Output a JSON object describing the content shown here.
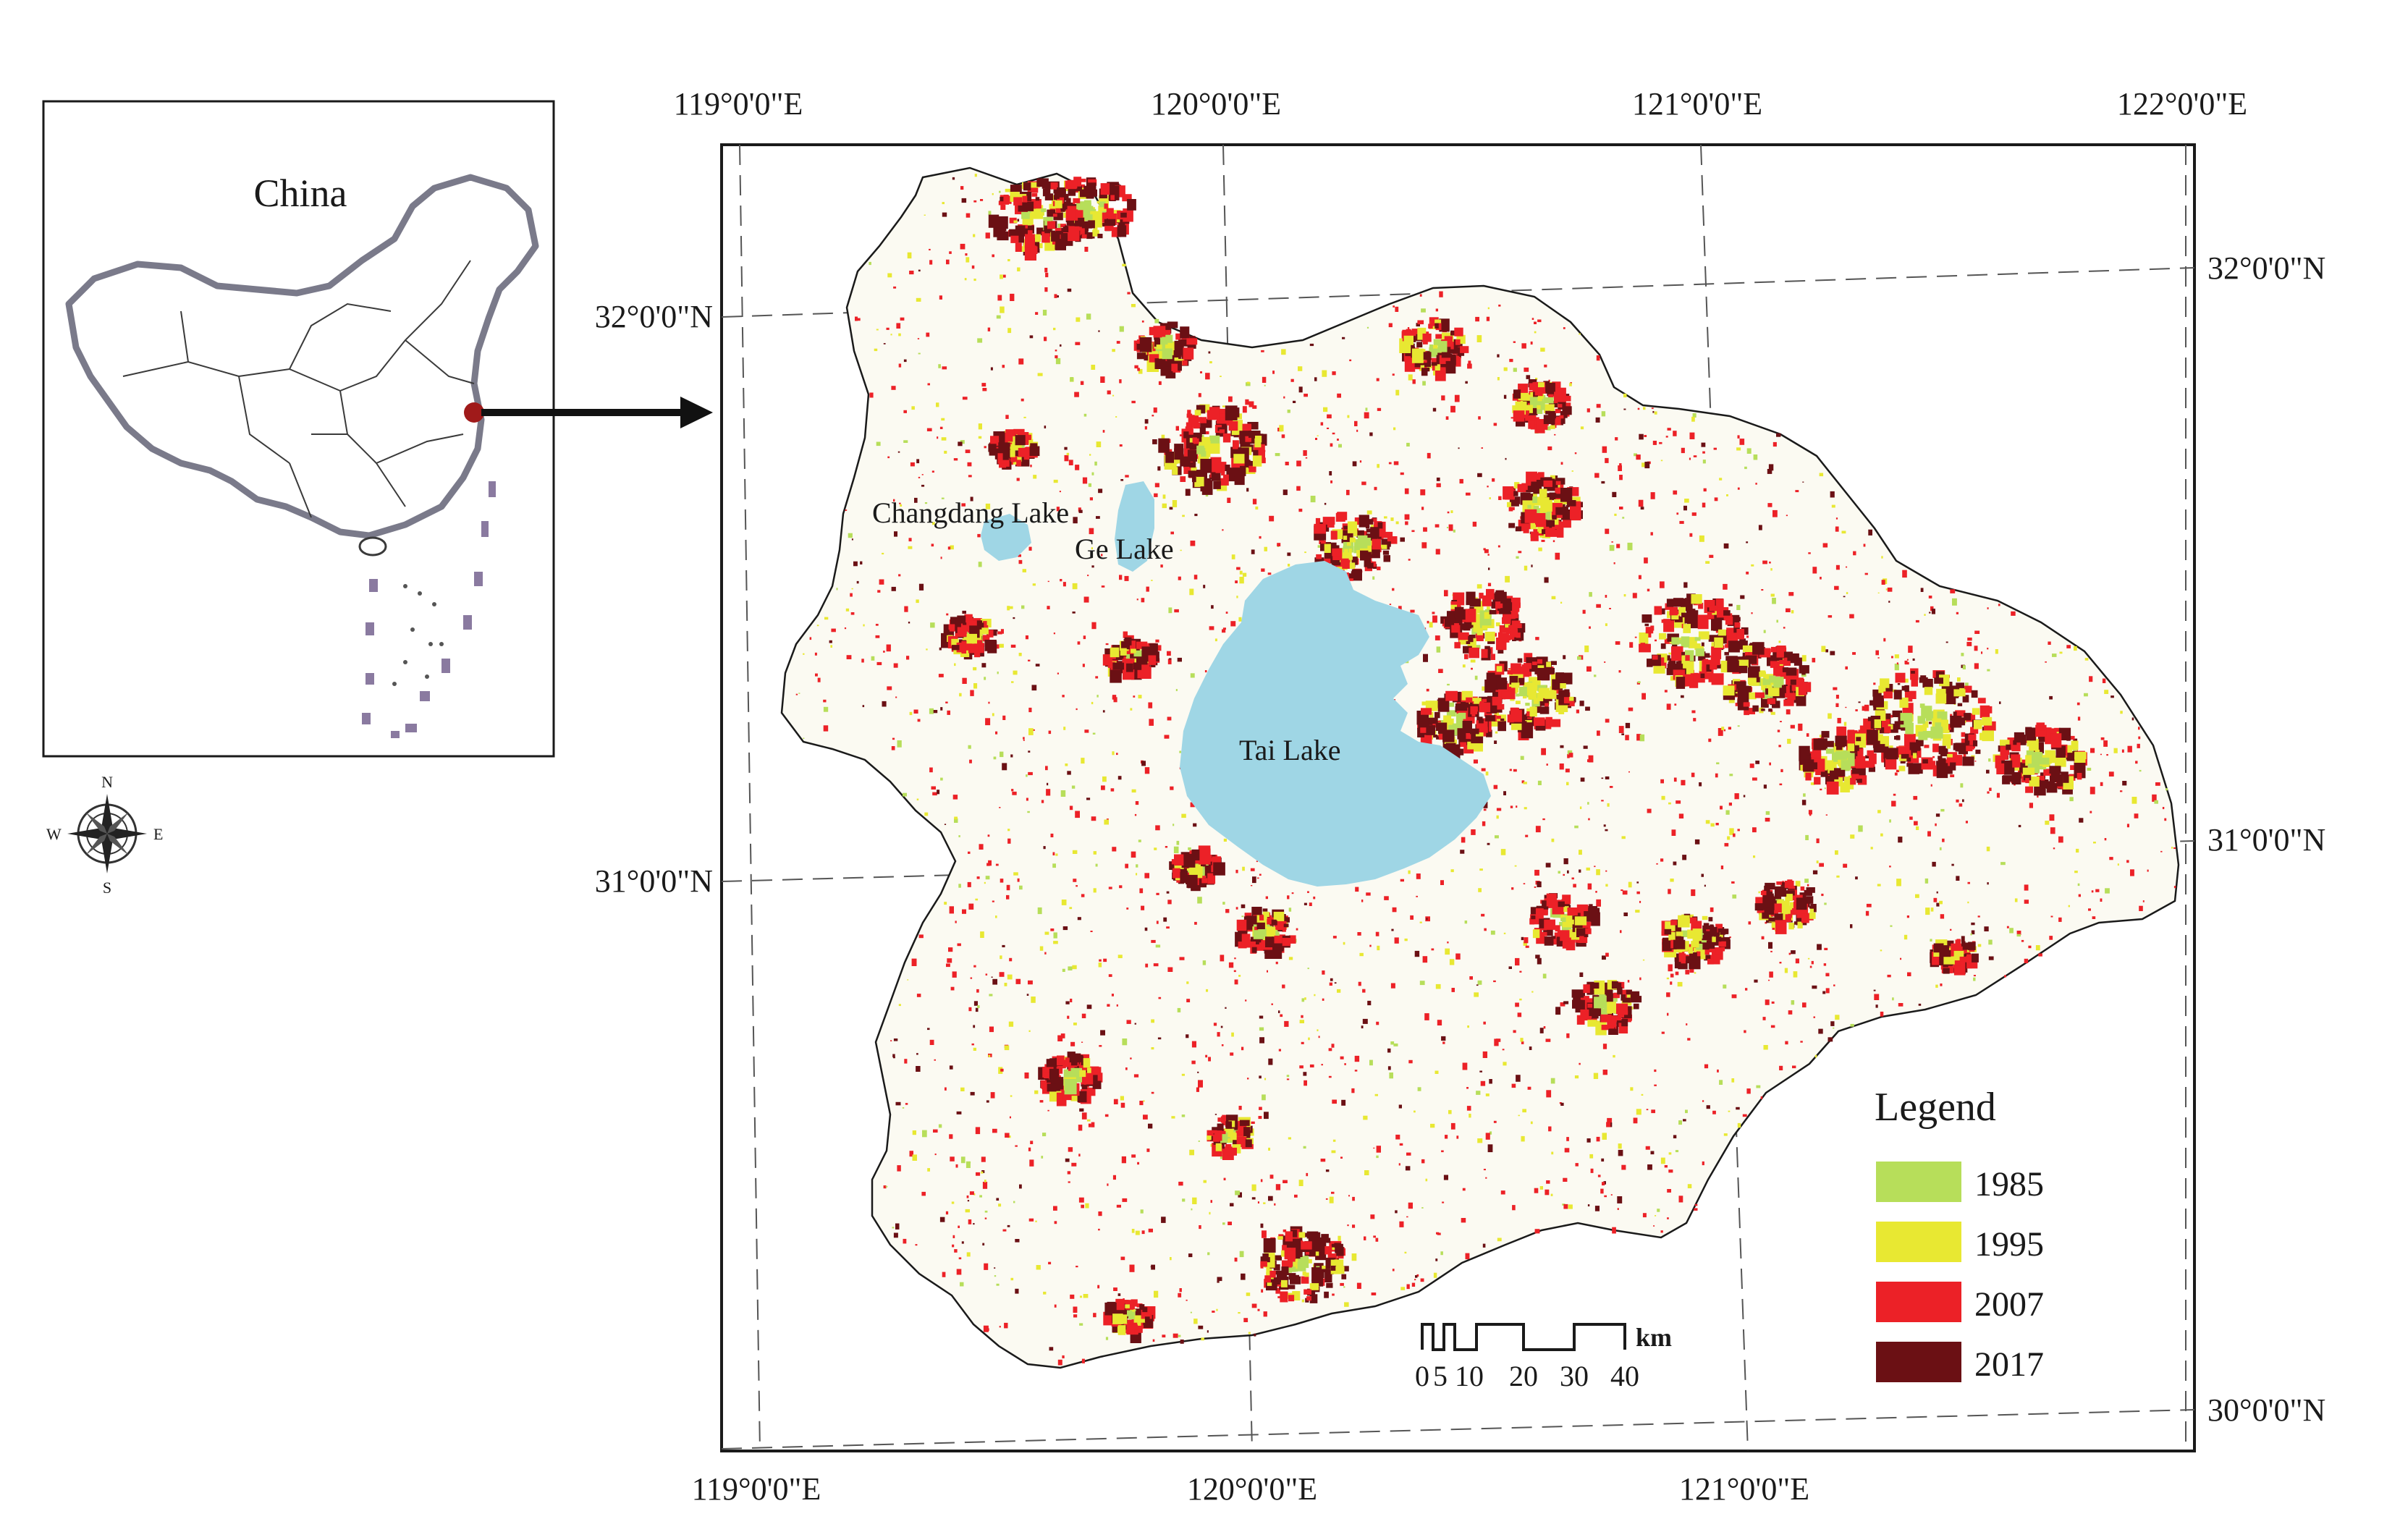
{
  "inset": {
    "title": "China"
  },
  "compass": {
    "north": "N",
    "south": "S",
    "east": "E",
    "west": "W"
  },
  "graticule": {
    "top_longitudes": [
      "119°0'0\"E",
      "120°0'0\"E",
      "121°0'0\"E",
      "122°0'0\"E"
    ],
    "bottom_longitudes": [
      "119°0'0\"E",
      "120°0'0\"E",
      "121°0'0\"E"
    ],
    "left_latitudes": [
      "32°0'0\"N",
      "31°0'0\"N"
    ],
    "right_latitudes": [
      "32°0'0\"N",
      "31°0'0\"N",
      "30°0'0\"N"
    ]
  },
  "lakes": {
    "changdang": "Changdang Lake",
    "ge": "Ge Lake",
    "tai": "Tai Lake"
  },
  "scale_bar": {
    "unit": "km",
    "ticks": [
      "0",
      "5",
      "10",
      "20",
      "30",
      "40"
    ]
  },
  "legend": {
    "title": "Legend",
    "items": [
      {
        "label": "1985",
        "color": "#b7de5a"
      },
      {
        "label": "1995",
        "color": "#e8e832"
      },
      {
        "label": "2007",
        "color": "#ec2127"
      },
      {
        "label": "2017",
        "color": "#6b1014"
      }
    ]
  },
  "colors": {
    "lake": "#9fd6e5",
    "boundary": "#3a3a3a",
    "background": "#ffffff"
  }
}
